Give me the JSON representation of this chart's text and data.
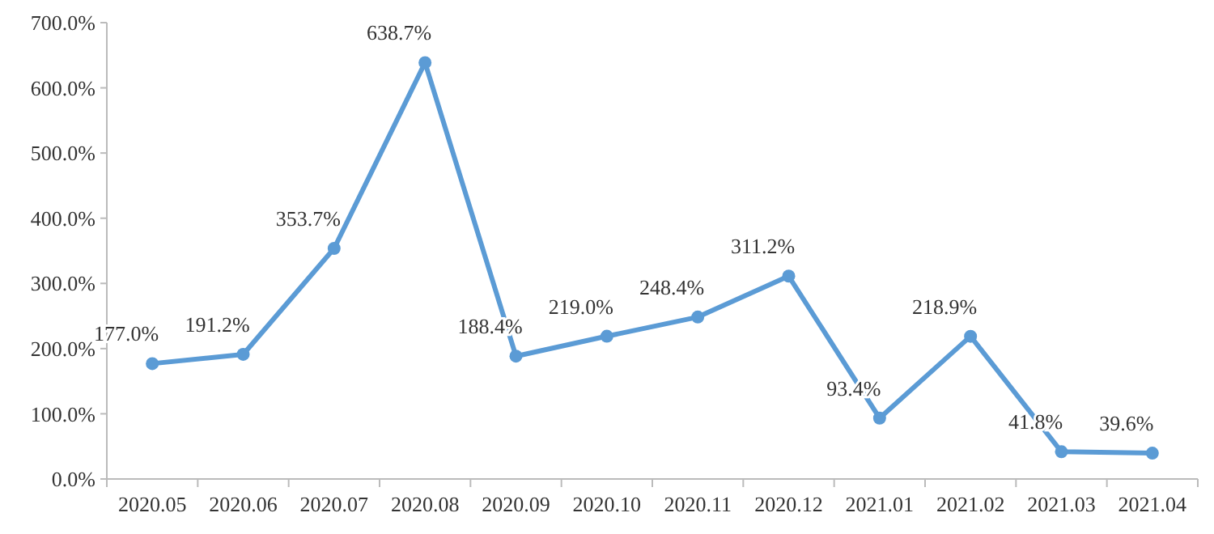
{
  "chart_data": {
    "type": "line",
    "categories": [
      "2020.05",
      "2020.06",
      "2020.07",
      "2020.08",
      "2020.09",
      "2020.10",
      "2020.11",
      "2020.12",
      "2021.01",
      "2021.02",
      "2021.03",
      "2021.04"
    ],
    "series": [
      {
        "color": "#5b9bd5",
        "values": [
          177.0,
          191.2,
          353.7,
          638.7,
          188.4,
          219.0,
          248.4,
          311.2,
          93.4,
          218.9,
          41.8,
          39.6
        ],
        "value_labels": [
          "177.0%",
          "191.2%",
          "353.7%",
          "638.7%",
          "188.4%",
          "219.0%",
          "248.4%",
          "311.2%",
          "93.4%",
          "218.9%",
          "41.8%",
          "39.6%"
        ]
      }
    ],
    "ylim": [
      0,
      700
    ],
    "yticks": [
      {
        "value": 0,
        "label": "0.0%"
      },
      {
        "value": 100,
        "label": "100.0%"
      },
      {
        "value": 200,
        "label": "200.0%"
      },
      {
        "value": 300,
        "label": "300.0%"
      },
      {
        "value": 400,
        "label": "400.0%"
      },
      {
        "value": 500,
        "label": "500.0%"
      },
      {
        "value": 600,
        "label": "600.0%"
      },
      {
        "value": 700,
        "label": "700.0%"
      }
    ],
    "marker": "circle",
    "grid": false
  }
}
